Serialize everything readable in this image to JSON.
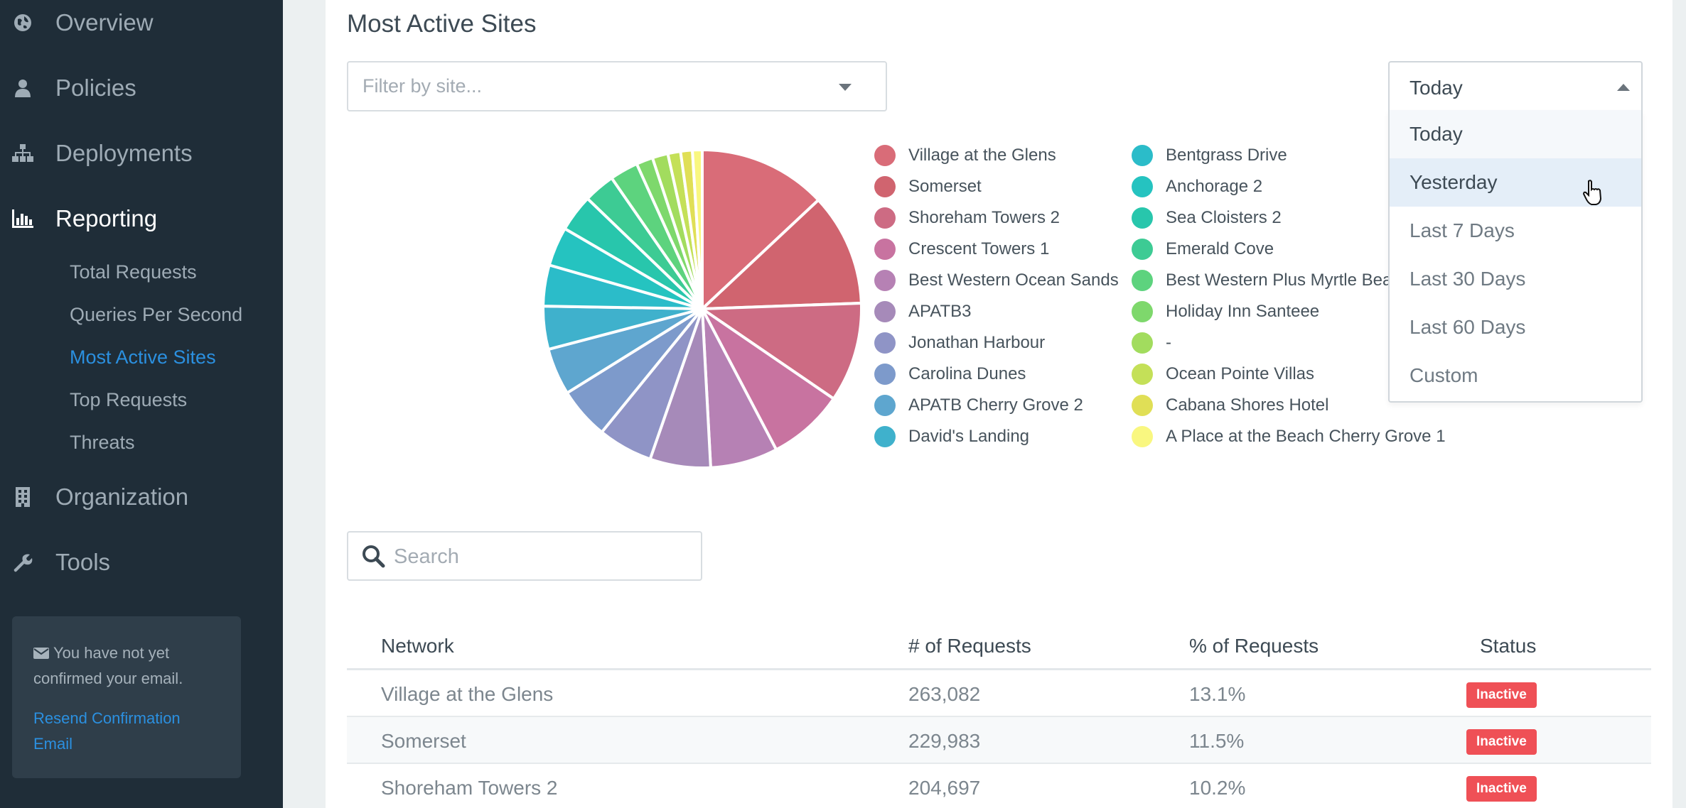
{
  "sidebar": {
    "nav": [
      {
        "label": "Overview",
        "icon": "globe-icon"
      },
      {
        "label": "Policies",
        "icon": "user-icon"
      },
      {
        "label": "Deployments",
        "icon": "sitemap-icon"
      },
      {
        "label": "Reporting",
        "icon": "bar-chart-icon"
      },
      {
        "label": "Organization",
        "icon": "building-icon"
      },
      {
        "label": "Tools",
        "icon": "wrench-icon"
      }
    ],
    "sub": [
      {
        "label": "Total Requests"
      },
      {
        "label": "Queries Per Second"
      },
      {
        "label": "Most Active Sites"
      },
      {
        "label": "Top Requests"
      },
      {
        "label": "Threats"
      }
    ],
    "email_notice": {
      "message": "You have not yet confirmed your email.",
      "link": "Resend Confirmation Email"
    }
  },
  "main": {
    "title": "Most Active Sites",
    "site_filter_placeholder": "Filter by site...",
    "date_range": {
      "value": "Today",
      "options": [
        "Today",
        "Yesterday",
        "Last 7 Days",
        "Last 30 Days",
        "Last 60 Days",
        "Custom"
      ]
    },
    "search_placeholder": "Search",
    "table": {
      "headers": [
        "Network",
        "# of Requests",
        "% of Requests",
        "Status"
      ],
      "rows": [
        {
          "network": "Village at the Glens",
          "requests": "263,082",
          "percent": "13.1%",
          "status": "Inactive"
        },
        {
          "network": "Somerset",
          "requests": "229,983",
          "percent": "11.5%",
          "status": "Inactive"
        },
        {
          "network": "Shoreham Towers 2",
          "requests": "204,697",
          "percent": "10.2%",
          "status": "Inactive"
        }
      ]
    }
  },
  "chart_data": {
    "type": "pie",
    "labels": [
      "Village at the Glens",
      "Somerset",
      "Shoreham Towers 2",
      "Crescent Towers 1",
      "Best Western Ocean Sands",
      "APATB3",
      "Jonathan Harbour",
      "Carolina Dunes",
      "APATB Cherry Grove 2",
      "David's Landing",
      "Bentgrass Drive",
      "Anchorage 2",
      "Sea Cloisters 2",
      "Emerald Cove",
      "Best Western Plus Myrtle Beach",
      "Holiday Inn Santeee",
      "-",
      "Ocean Pointe Villas",
      "Cabana Shores Hotel",
      "A Place at the Beach Cherry Grove 1"
    ],
    "values": [
      13.1,
      11.5,
      10.2,
      7.8,
      6.9,
      6.2,
      5.6,
      5.3,
      4.8,
      4.4,
      4.2,
      4.0,
      3.8,
      3.2,
      2.9,
      1.7,
      1.6,
      1.3,
      1.2,
      1.0
    ],
    "colors": [
      "#d96c78",
      "#d0646f",
      "#cd6b83",
      "#c873a0",
      "#b681b4",
      "#a68ab9",
      "#8f94c6",
      "#7d9acb",
      "#5ea6cf",
      "#3fb1cc",
      "#2bbcc9",
      "#25c3c0",
      "#28c6ac",
      "#3dcb94",
      "#5dd37e",
      "#7ed86c",
      "#a2dc5e",
      "#c4e058",
      "#e0df56",
      "#f9f780"
    ],
    "legend_columns": 2
  }
}
